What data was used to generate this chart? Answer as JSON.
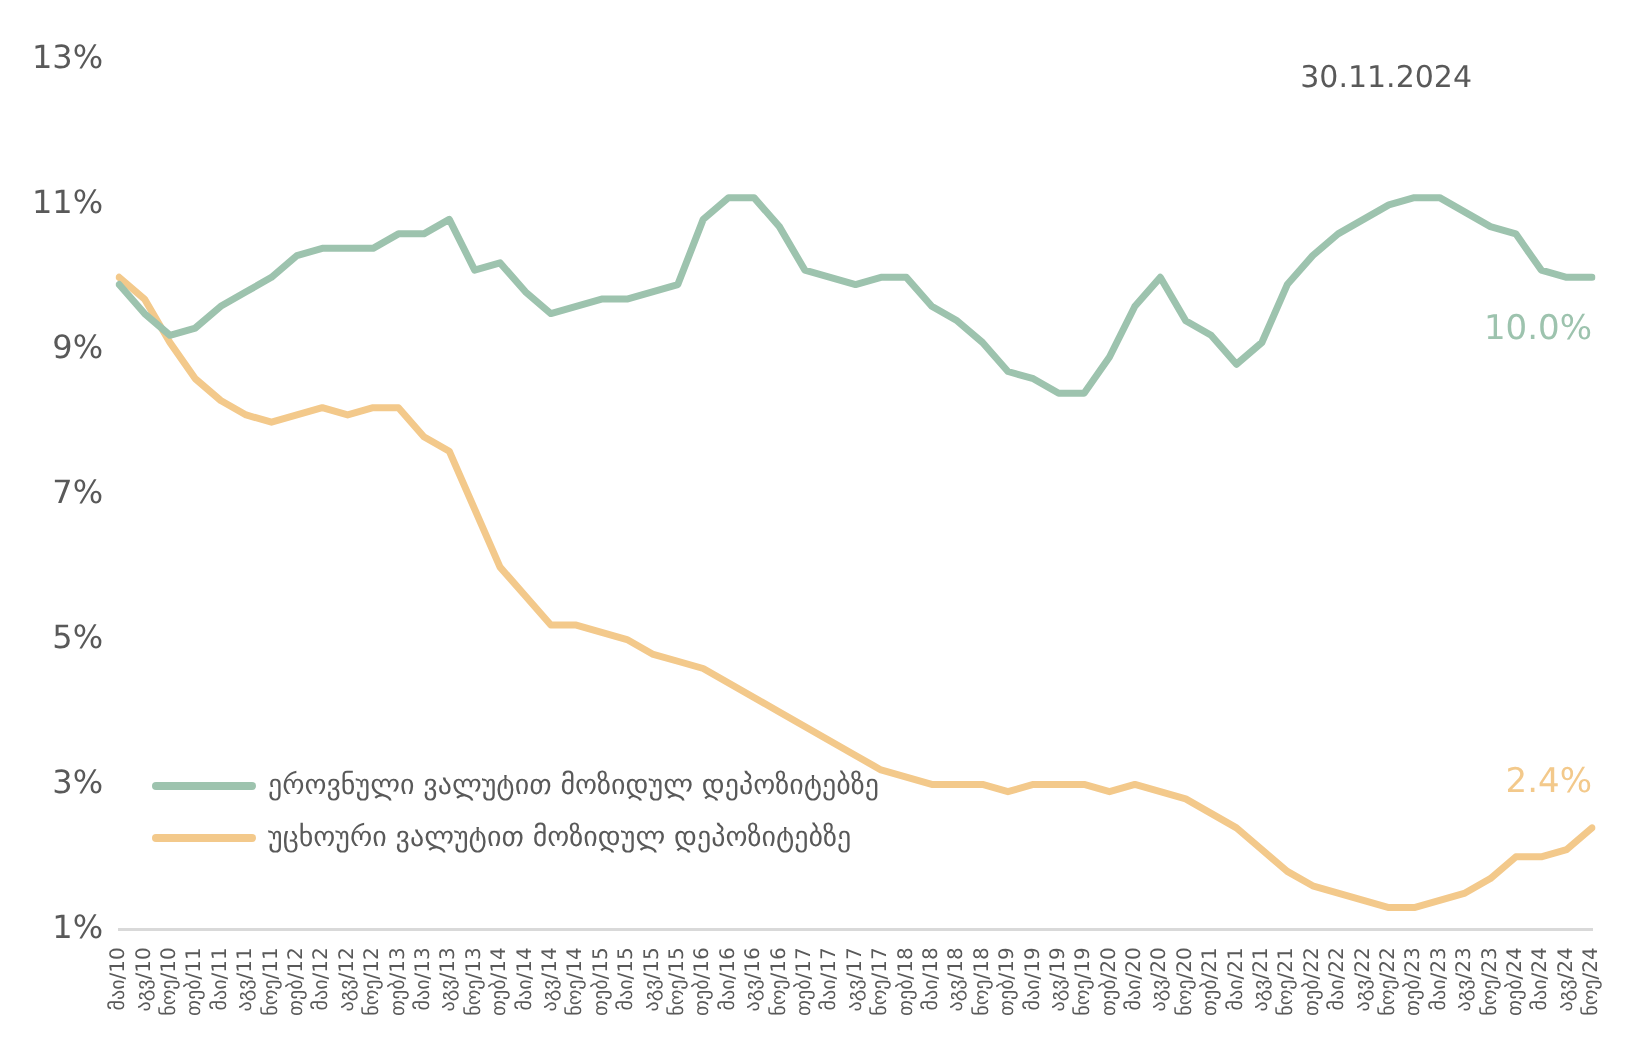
{
  "chart_data": {
    "type": "line",
    "categories": [
      "მაი/10",
      "აგვ/10",
      "ნოე/10",
      "თებ/11",
      "მაი/11",
      "აგვ/11",
      "ნოე/11",
      "თებ/12",
      "მაი/12",
      "აგვ/12",
      "ნოე/12",
      "თებ/13",
      "მაი/13",
      "აგვ/13",
      "ნოე/13",
      "თებ/14",
      "მაი/14",
      "აგვ/14",
      "ნოე/14",
      "თებ/15",
      "მაი/15",
      "აგვ/15",
      "ნოე/15",
      "თებ/16",
      "მაი/16",
      "აგვ/16",
      "ნოე/16",
      "თებ/17",
      "მაი/17",
      "აგვ/17",
      "ნოე/17",
      "თებ/18",
      "მაი/18",
      "აგვ/18",
      "ნოე/18",
      "თებ/19",
      "მაი/19",
      "აგვ/19",
      "ნოე/19",
      "თებ/20",
      "მაი/20",
      "აგვ/20",
      "ნოე/20",
      "თებ/21",
      "მაი/21",
      "აგვ/21",
      "ნოე/21",
      "თებ/22",
      "მაი/22",
      "აგვ/22",
      "ნოე/22",
      "თებ/23",
      "მაი/23",
      "აგვ/23",
      "ნოე/23",
      "თებ/24",
      "მაი/24",
      "აგვ/24",
      "ნოე/24"
    ],
    "series": [
      {
        "name": "ეროვნული ვალუტით მოზიდულ დეპოზიტებზე",
        "color": "#9dc3ae",
        "values": [
          9.9,
          9.5,
          9.2,
          9.3,
          9.6,
          9.8,
          10.0,
          10.3,
          10.4,
          10.4,
          10.4,
          10.6,
          10.6,
          10.8,
          10.1,
          10.2,
          9.8,
          9.5,
          9.6,
          9.7,
          9.7,
          9.8,
          9.9,
          10.8,
          11.1,
          11.1,
          10.7,
          10.1,
          10.0,
          9.9,
          10.0,
          10.0,
          9.6,
          9.4,
          9.1,
          8.7,
          8.6,
          8.4,
          8.4,
          8.9,
          9.6,
          10.0,
          9.4,
          9.2,
          8.8,
          9.1,
          9.9,
          10.3,
          10.6,
          10.8,
          11.0,
          11.1,
          11.1,
          10.9,
          10.7,
          10.6,
          10.1,
          10.0,
          10.0
        ],
        "value_labels": [
          null,
          null,
          null,
          null,
          null,
          null,
          null,
          null,
          null,
          null,
          null,
          null,
          null,
          null,
          null,
          null,
          null,
          null,
          null,
          null,
          null,
          null,
          null,
          null,
          null,
          null,
          null,
          null,
          null,
          null,
          null,
          null,
          null,
          null,
          null,
          null,
          null,
          null,
          null,
          null,
          null,
          null,
          null,
          null,
          null,
          null,
          null,
          null,
          null,
          null,
          null,
          null,
          null,
          null,
          null,
          null,
          null,
          null,
          "10.0%"
        ]
      },
      {
        "name": "უცხოური ვალუტით მოზიდულ დეპოზიტებზე",
        "color": "#f3c98b",
        "values": [
          10.0,
          9.7,
          9.1,
          8.6,
          8.3,
          8.1,
          8.0,
          8.1,
          8.2,
          8.1,
          8.2,
          8.2,
          7.8,
          7.6,
          6.8,
          6.0,
          5.6,
          5.2,
          5.2,
          5.1,
          5.0,
          4.8,
          4.7,
          4.6,
          4.4,
          4.2,
          4.0,
          3.8,
          3.6,
          3.4,
          3.2,
          3.1,
          3.0,
          3.0,
          3.0,
          2.9,
          3.0,
          3.0,
          3.0,
          2.9,
          3.0,
          2.9,
          2.8,
          2.6,
          2.4,
          2.1,
          1.8,
          1.6,
          1.5,
          1.4,
          1.3,
          1.3,
          1.4,
          1.5,
          1.7,
          2.0,
          2.0,
          2.1,
          2.4
        ],
        "value_labels": [
          null,
          null,
          null,
          null,
          null,
          null,
          null,
          null,
          null,
          null,
          null,
          null,
          null,
          null,
          null,
          null,
          null,
          null,
          null,
          null,
          null,
          null,
          null,
          null,
          null,
          null,
          null,
          null,
          null,
          null,
          null,
          null,
          null,
          null,
          null,
          null,
          null,
          null,
          null,
          null,
          null,
          null,
          null,
          null,
          null,
          null,
          null,
          null,
          null,
          null,
          null,
          null,
          null,
          null,
          null,
          null,
          null,
          null,
          "2.4%"
        ]
      }
    ],
    "ylim": [
      1,
      13
    ],
    "yticks": [
      {
        "value": 1,
        "label": "1%"
      },
      {
        "value": 3,
        "label": "3%"
      },
      {
        "value": 5,
        "label": "5%"
      },
      {
        "value": 7,
        "label": "7%"
      },
      {
        "value": 9,
        "label": "9%"
      },
      {
        "value": 11,
        "label": "11%"
      },
      {
        "value": 13,
        "label": "13%"
      }
    ],
    "grid": false,
    "legend": "bottom left",
    "marker": "none",
    "line_style": "solid",
    "annotations": [
      "30.11.2024"
    ]
  }
}
